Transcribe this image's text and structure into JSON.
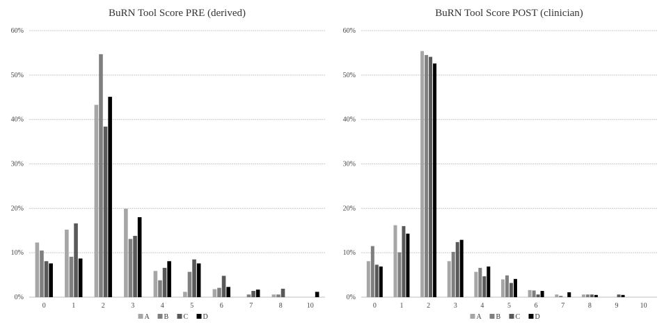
{
  "chart_data": [
    {
      "type": "bar",
      "title": "BuRN Tool Score PRE (derived)",
      "xlabel": "",
      "ylabel": "",
      "ylim": [
        0,
        60
      ],
      "y_ticks": [
        "0%",
        "10%",
        "20%",
        "30%",
        "40%",
        "50%",
        "60%"
      ],
      "categories": [
        "0",
        "1",
        "2",
        "3",
        "4",
        "5",
        "6",
        "7",
        "8",
        "10"
      ],
      "series": [
        {
          "name": "A",
          "color": "#a6a6a6",
          "values": [
            12.3,
            15.2,
            43.3,
            19.9,
            5.9,
            1.2,
            1.8,
            0,
            0.6,
            0
          ]
        },
        {
          "name": "B",
          "color": "#7f7f7f",
          "values": [
            10.5,
            9.1,
            54.7,
            13.1,
            3.8,
            5.7,
            2.1,
            0.6,
            0.6,
            0
          ]
        },
        {
          "name": "C",
          "color": "#595959",
          "values": [
            8.1,
            16.6,
            38.4,
            13.8,
            6.6,
            8.5,
            4.8,
            1.4,
            1.9,
            0
          ]
        },
        {
          "name": "D",
          "color": "#000000",
          "values": [
            7.6,
            8.7,
            45.1,
            18.0,
            8.1,
            7.6,
            2.3,
            1.7,
            0,
            1.2
          ]
        }
      ],
      "legend": "bottom",
      "grid": true
    },
    {
      "type": "bar",
      "title": "BuRN Tool Score POST (clinician)",
      "xlabel": "",
      "ylabel": "",
      "ylim": [
        0,
        60
      ],
      "y_ticks": [
        "0%",
        "10%",
        "20%",
        "30%",
        "40%",
        "50%",
        "60%"
      ],
      "categories": [
        "0",
        "1",
        "2",
        "3",
        "4",
        "5",
        "6",
        "7",
        "8",
        "9",
        "10"
      ],
      "series": [
        {
          "name": "A",
          "color": "#a6a6a6",
          "values": [
            8.1,
            16.2,
            55.4,
            8.1,
            5.7,
            4.0,
            1.6,
            0.6,
            0.6,
            0,
            0
          ]
        },
        {
          "name": "B",
          "color": "#7f7f7f",
          "values": [
            11.5,
            10.1,
            54.5,
            10.2,
            6.6,
            4.9,
            1.5,
            0.3,
            0.6,
            0,
            0
          ]
        },
        {
          "name": "C",
          "color": "#595959",
          "values": [
            7.3,
            16.0,
            54.1,
            12.4,
            4.7,
            3.2,
            0.6,
            0,
            0.6,
            0.6,
            0
          ]
        },
        {
          "name": "D",
          "color": "#000000",
          "values": [
            6.9,
            14.3,
            52.6,
            12.9,
            6.9,
            4.1,
            1.4,
            1.1,
            0.5,
            0.5,
            0
          ]
        }
      ],
      "legend": "bottom",
      "grid": true
    }
  ]
}
